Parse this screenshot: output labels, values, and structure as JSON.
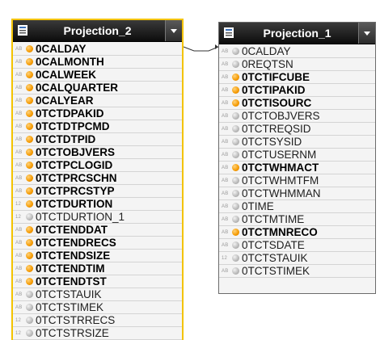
{
  "nodes": {
    "left": {
      "title": "Projection_2",
      "fields": [
        {
          "type": "AB",
          "name": "0CALDAY",
          "key": true
        },
        {
          "type": "AB",
          "name": "0CALMONTH",
          "key": true
        },
        {
          "type": "AB",
          "name": "0CALWEEK",
          "key": true
        },
        {
          "type": "AB",
          "name": "0CALQUARTER",
          "key": true
        },
        {
          "type": "AB",
          "name": "0CALYEAR",
          "key": true
        },
        {
          "type": "AB",
          "name": "0TCTDPAKID",
          "key": true
        },
        {
          "type": "AB",
          "name": "0TCTDTPCMD",
          "key": true
        },
        {
          "type": "AB",
          "name": "0TCTDTPID",
          "key": true
        },
        {
          "type": "AB",
          "name": "0TCTOBJVERS",
          "key": true
        },
        {
          "type": "AB",
          "name": "0TCTPCLOGID",
          "key": true
        },
        {
          "type": "AB",
          "name": "0TCTPRCSCHN",
          "key": true
        },
        {
          "type": "AB",
          "name": "0TCTPRCSTYP",
          "key": true
        },
        {
          "type": "12",
          "name": "0TCTDURTION",
          "key": true
        },
        {
          "type": "12",
          "name": "0TCTDURTION_1",
          "key": false
        },
        {
          "type": "AB",
          "name": "0TCTENDDAT",
          "key": true
        },
        {
          "type": "AB",
          "name": "0TCTENDRECS",
          "key": true
        },
        {
          "type": "AB",
          "name": "0TCTENDSIZE",
          "key": true
        },
        {
          "type": "AB",
          "name": "0TCTENDTIM",
          "key": true
        },
        {
          "type": "AB",
          "name": "0TCTENDTST",
          "key": true
        },
        {
          "type": "AB",
          "name": "0TCTSTAUIK",
          "key": false
        },
        {
          "type": "AB",
          "name": "0TCTSTIMEK",
          "key": false
        },
        {
          "type": "12",
          "name": "0TCTSTRRECS",
          "key": false
        },
        {
          "type": "12",
          "name": "0TCTSTRSIZE",
          "key": false
        }
      ]
    },
    "right": {
      "title": "Projection_1",
      "fields": [
        {
          "type": "AB",
          "name": "0CALDAY",
          "key": false
        },
        {
          "type": "AB",
          "name": "0REQTSN",
          "key": false
        },
        {
          "type": "AB",
          "name": "0TCTIFCUBE",
          "key": true
        },
        {
          "type": "AB",
          "name": "0TCTIPAKID",
          "key": true
        },
        {
          "type": "AB",
          "name": "0TCTISOURC",
          "key": true
        },
        {
          "type": "AB",
          "name": "0TCTOBJVERS",
          "key": false
        },
        {
          "type": "AB",
          "name": "0TCTREQSID",
          "key": false
        },
        {
          "type": "AB",
          "name": "0TCTSYSID",
          "key": false
        },
        {
          "type": "AB",
          "name": "0TCTUSERNM",
          "key": false
        },
        {
          "type": "AB",
          "name": "0TCTWHMACT",
          "key": true
        },
        {
          "type": "AB",
          "name": "0TCTWHMTFM",
          "key": false
        },
        {
          "type": "AB",
          "name": "0TCTWHMMAN",
          "key": false
        },
        {
          "type": "AB",
          "name": "0TIME",
          "key": false
        },
        {
          "type": "AB",
          "name": "0TCTMTIME",
          "key": false
        },
        {
          "type": "AB",
          "name": "0TCTMNRECO",
          "key": true
        },
        {
          "type": "AB",
          "name": "0TCTSDATE",
          "key": false
        },
        {
          "type": "12",
          "name": "0TCTSTAUIK",
          "key": false
        },
        {
          "type": "AB",
          "name": "0TCTSTIMEK",
          "key": false
        }
      ]
    }
  },
  "colors": {
    "selected_border": "#f3c300",
    "key_dot": "#f59a00",
    "attr_dot": "#b9b9b9",
    "header_bg": "#111111"
  }
}
